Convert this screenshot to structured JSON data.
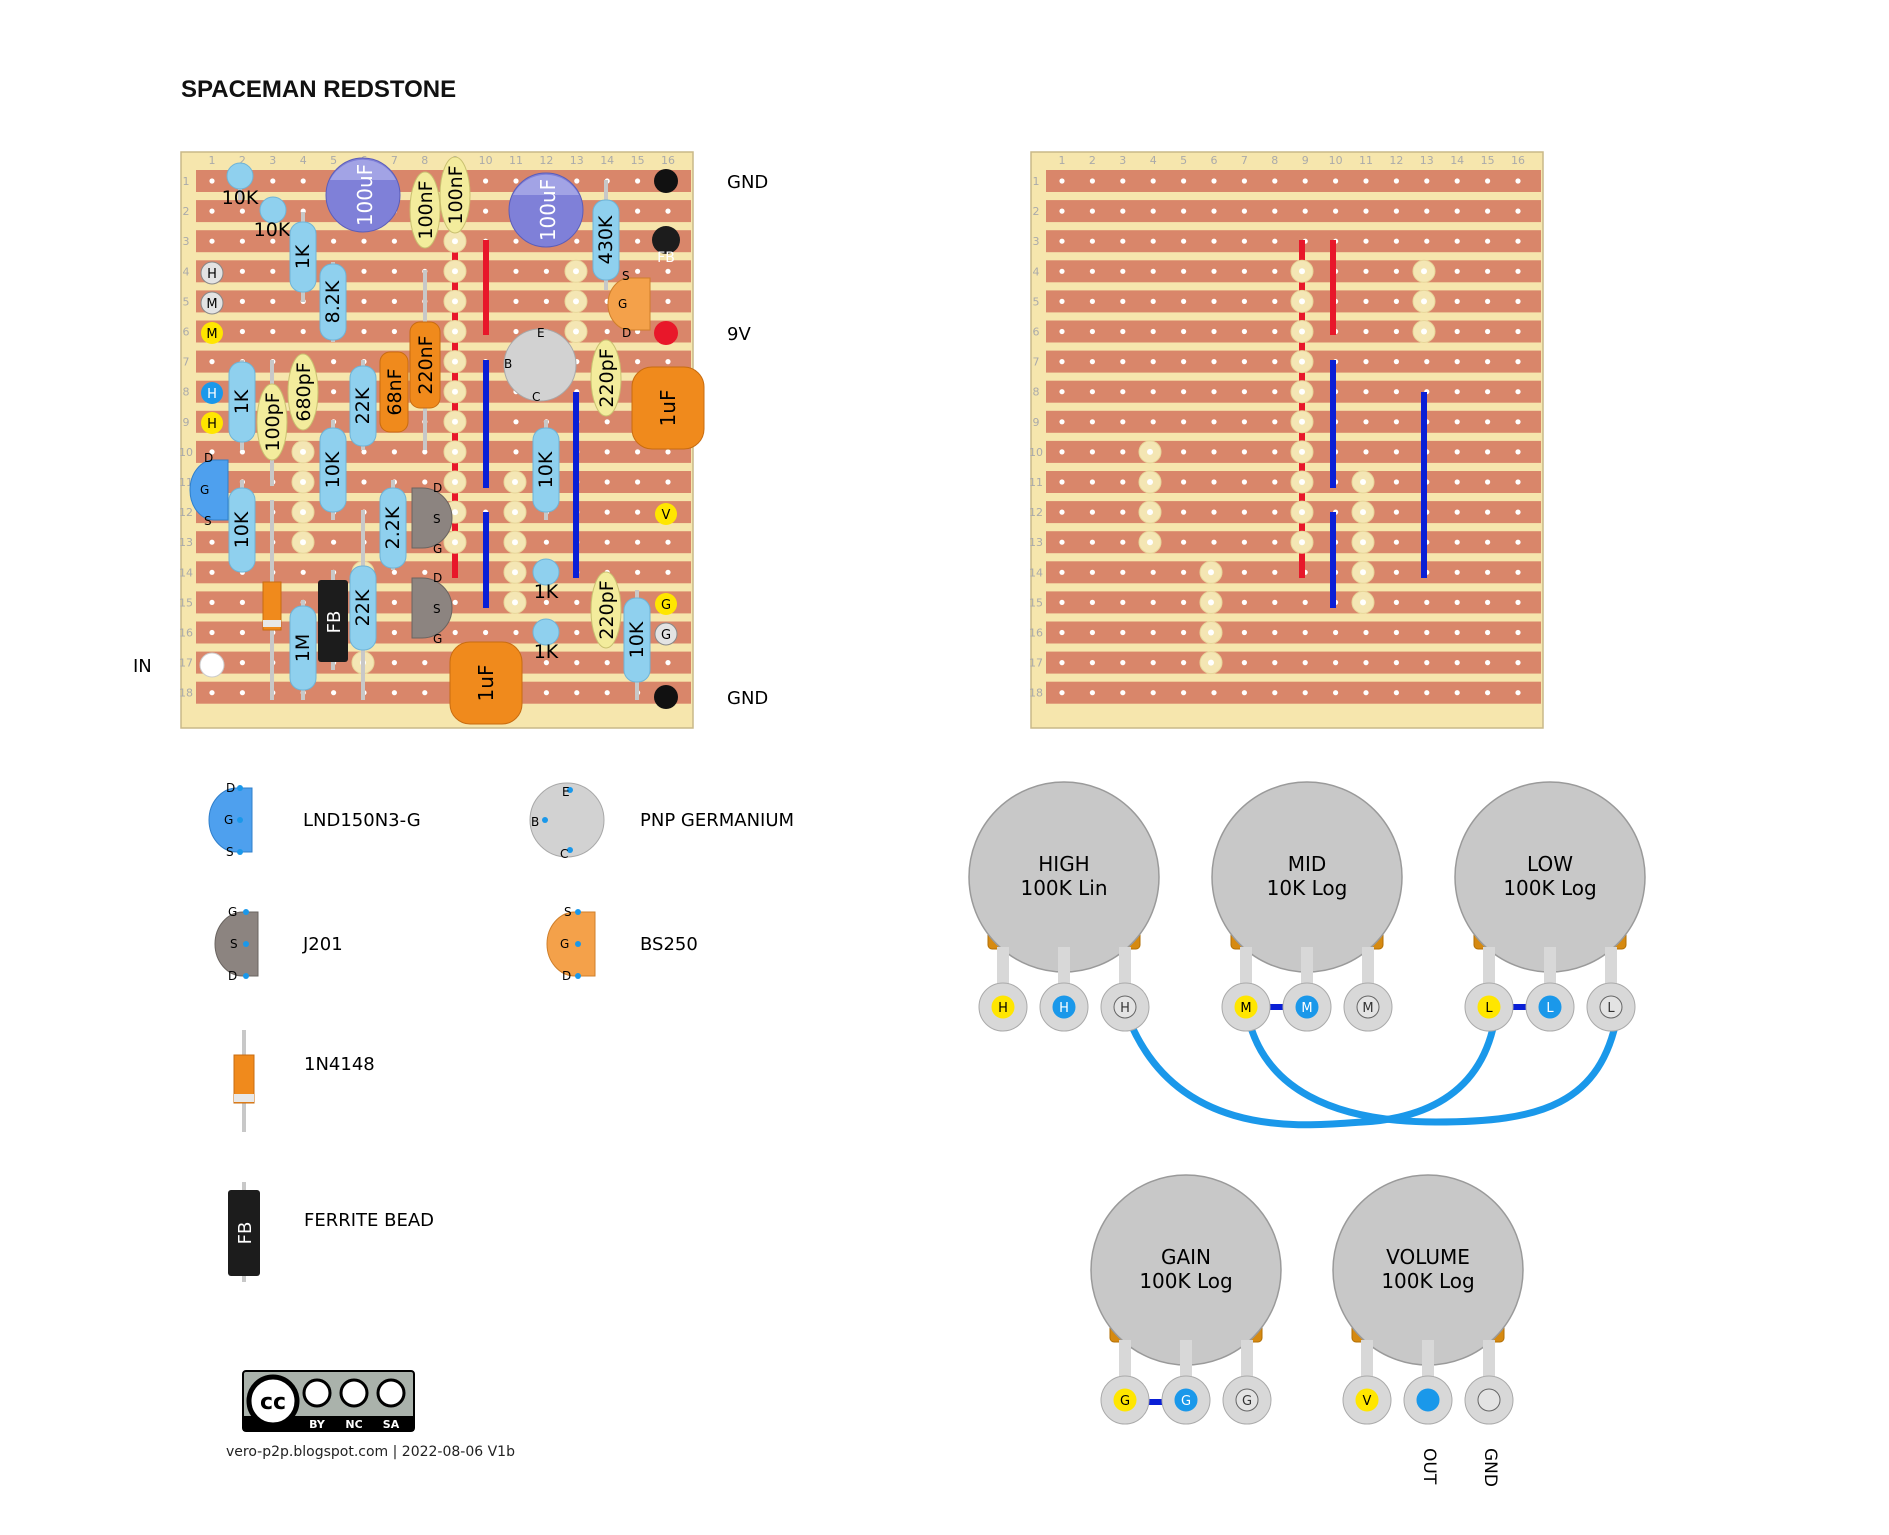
{
  "title": "SPACEMAN REDSTONE",
  "credit": "vero-p2p.blogspot.com  |  2022-08-06 V1b",
  "license": {
    "main": "cc",
    "labels": [
      "BY",
      "NC",
      "SA"
    ]
  },
  "colors": {
    "board": "#f6e6ad",
    "strip": "#d9866a",
    "hole": "#ffffff",
    "resistor": "#8fd0ee",
    "film_cap": "#f3ec9c",
    "electrolytic": "#7f80d8",
    "box_cap": "#f08a1c",
    "link_red": "#e8172a",
    "link_blue": "#0a1fd6",
    "pot_body": "#c8c8c8",
    "pot_base": "#d68a11",
    "wire": "#1a98ea"
  },
  "board": {
    "columns": [
      "1",
      "2",
      "3",
      "4",
      "5",
      "6",
      "7",
      "8",
      "9",
      "10",
      "11",
      "12",
      "13",
      "14",
      "15",
      "16"
    ],
    "rows": [
      "1",
      "2",
      "3",
      "4",
      "5",
      "6",
      "7",
      "8",
      "9",
      "10",
      "11",
      "12",
      "13",
      "14",
      "15",
      "16",
      "17",
      "18"
    ]
  },
  "offboard": {
    "gnd_top": "GND",
    "v9": "9V",
    "gnd_bottom": "GND",
    "input": "IN"
  },
  "components": {
    "r10k_a": "10K",
    "r10k_b": "10K",
    "r1k_a": "1K",
    "r8k2": "8.2K",
    "r430k": "430K",
    "r1k_b": "1K",
    "r22k_a": "22K",
    "r10k_c": "10K",
    "r10k_d": "10K",
    "r2k2": "2.2K",
    "r10k_e": "10K",
    "r22k_b": "22K",
    "r1m": "1M",
    "r1k_c": "1K",
    "r1k_d": "1K",
    "r10k_f": "10K",
    "c100uf_a": "100uF",
    "c100uf_b": "100uF",
    "c100nf_a": "100nF",
    "c100nf_b": "100nF",
    "c680pf": "680pF",
    "c100pf": "100pF",
    "c68nf": "68nF",
    "c220nf": "220nF",
    "c220pf_a": "220pF",
    "c220pf_b": "220pF",
    "c1uf_a": "1uF",
    "c1uf_b": "1uF",
    "fb": "FB"
  },
  "pads": {
    "H": "H",
    "M": "M",
    "L": "L",
    "G": "G",
    "V": "V",
    "D": "D",
    "S": "S",
    "E": "E",
    "B": "B",
    "C": "C",
    "FB": "FB"
  },
  "legend": [
    {
      "label": "LND150N3-G"
    },
    {
      "label": "PNP GERMANIUM"
    },
    {
      "label": "J201"
    },
    {
      "label": "BS250"
    },
    {
      "label": "1N4148"
    },
    {
      "label": "FERRITE BEAD"
    }
  ],
  "pots": [
    {
      "name": "HIGH",
      "value": "100K Lin",
      "lugs": [
        "H",
        "H",
        "H"
      ]
    },
    {
      "name": "MID",
      "value": "10K Log",
      "lugs": [
        "M",
        "M",
        "M"
      ]
    },
    {
      "name": "LOW",
      "value": "100K Log",
      "lugs": [
        "L",
        "L",
        "L"
      ]
    },
    {
      "name": "GAIN",
      "value": "100K Log",
      "lugs": [
        "G",
        "G",
        "G"
      ]
    },
    {
      "name": "VOLUME",
      "value": "100K Log",
      "lugs": [
        "V",
        "",
        ""
      ]
    }
  ],
  "jack_labels": {
    "out": "OUT",
    "gnd": "GND"
  }
}
